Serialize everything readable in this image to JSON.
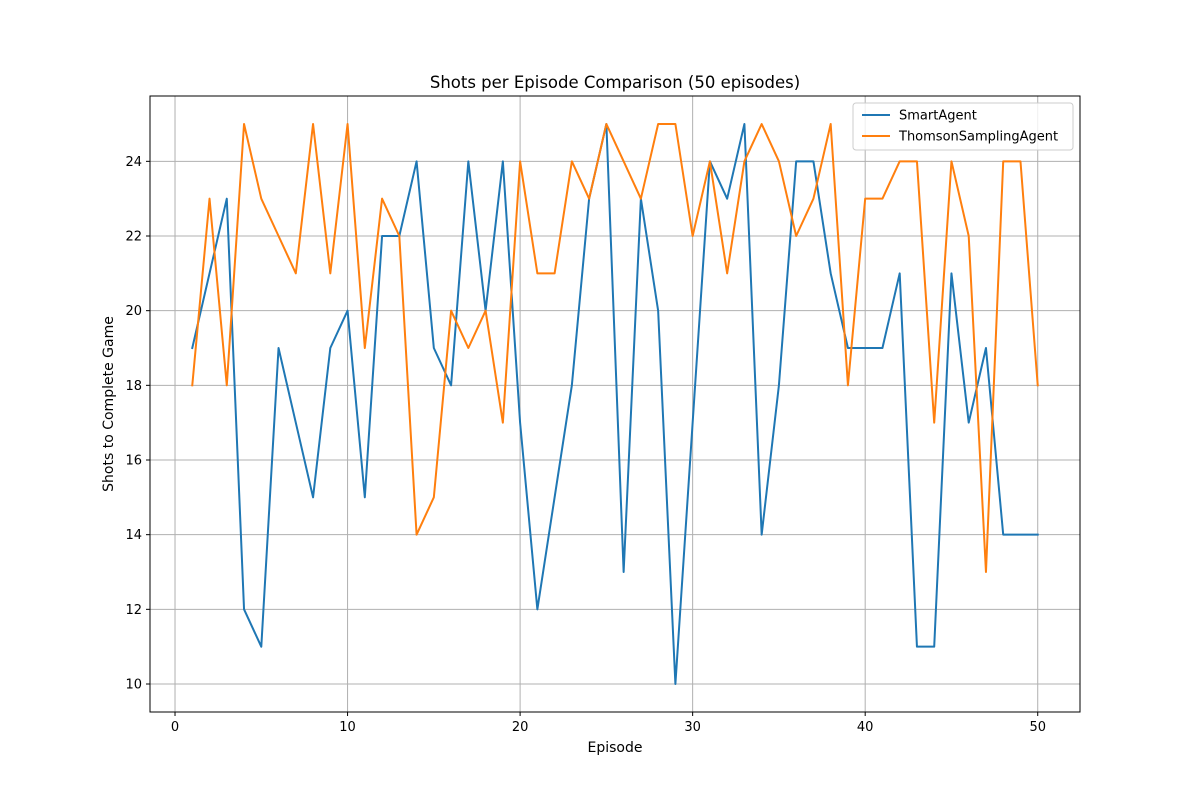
{
  "chart_data": {
    "type": "line",
    "title": "Shots per Episode Comparison (50 episodes)",
    "xlabel": "Episode",
    "ylabel": "Shots to Complete Game",
    "xlim": [
      -1.45,
      52.45
    ],
    "ylim": [
      9.25,
      25.75
    ],
    "xticks": [
      0,
      10,
      20,
      30,
      40,
      50
    ],
    "yticks": [
      10,
      12,
      14,
      16,
      18,
      20,
      22,
      24
    ],
    "grid": true,
    "legend_position": "top-right",
    "x": [
      1,
      2,
      3,
      4,
      5,
      6,
      7,
      8,
      9,
      10,
      11,
      12,
      13,
      14,
      15,
      16,
      17,
      18,
      19,
      20,
      21,
      22,
      23,
      24,
      25,
      26,
      27,
      28,
      29,
      30,
      31,
      32,
      33,
      34,
      35,
      36,
      37,
      38,
      39,
      40,
      41,
      42,
      43,
      44,
      45,
      46,
      47,
      48,
      49,
      50
    ],
    "series": [
      {
        "name": "SmartAgent",
        "color": "#1f77b4",
        "values": [
          19,
          21,
          23,
          12,
          11,
          19,
          17,
          15,
          19,
          20,
          15,
          22,
          22,
          24,
          19,
          18,
          24,
          20,
          24,
          17,
          12,
          15,
          18,
          23,
          25,
          13,
          23,
          20,
          10,
          17,
          24,
          23,
          25,
          14,
          18,
          24,
          24,
          21,
          19,
          19,
          19,
          21,
          11,
          11,
          21,
          17,
          19,
          14,
          14,
          14
        ]
      },
      {
        "name": "ThomsonSamplingAgent",
        "color": "#ff7f0e",
        "values": [
          18,
          23,
          18,
          25,
          23,
          22,
          21,
          25,
          21,
          25,
          19,
          23,
          22,
          14,
          15,
          20,
          19,
          20,
          17,
          24,
          21,
          21,
          24,
          23,
          25,
          24,
          23,
          25,
          25,
          22,
          24,
          21,
          24,
          25,
          24,
          22,
          23,
          25,
          18,
          23,
          23,
          24,
          24,
          17,
          24,
          22,
          13,
          24,
          24,
          18
        ]
      }
    ]
  }
}
